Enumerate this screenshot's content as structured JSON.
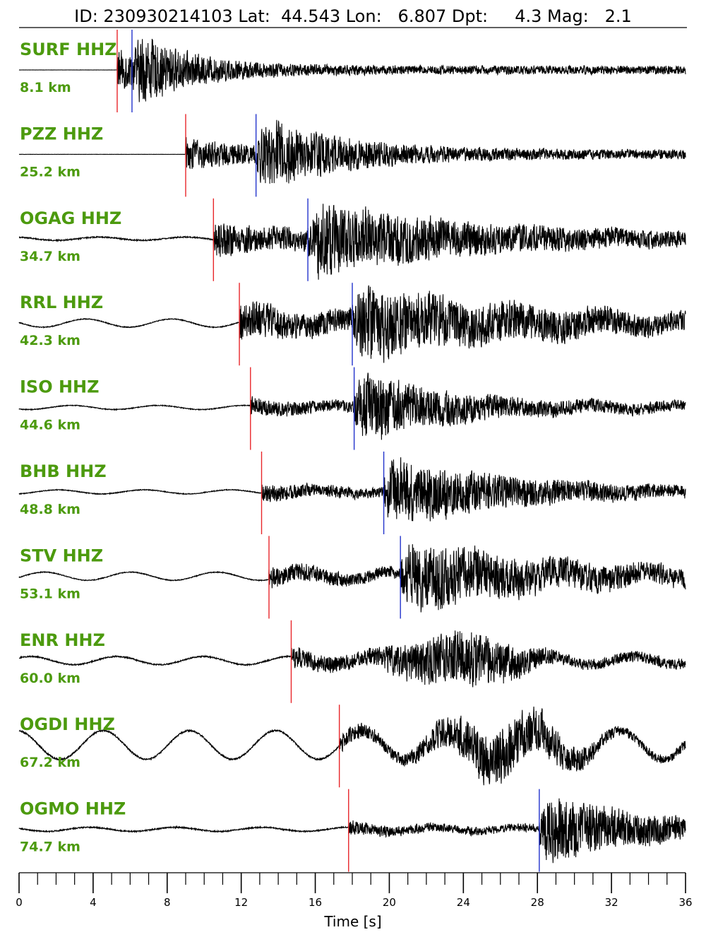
{
  "chart_data": {
    "type": "line",
    "title": "ID: 230930214103 Lat:  44.543 Lon:   6.807 Dpt:     4.3 Mag:   2.1",
    "xlabel": "Time [s]",
    "xlim": [
      0,
      36
    ],
    "x_ticks": [
      0,
      4,
      8,
      12,
      16,
      20,
      24,
      28,
      32,
      36
    ],
    "x_tick_labels": [
      "0",
      "4",
      "8",
      "12",
      "16",
      "20",
      "24",
      "28",
      "32",
      "36"
    ],
    "minor_tick_step": 1,
    "label_color": "#4c9a0e",
    "trace_color": "#000000",
    "p_pick_color": "#e8262a",
    "s_pick_color": "#2233cc",
    "traces": [
      {
        "station": "SURF HHZ",
        "distance": "8.1 km",
        "p_pick": 5.3,
        "s_pick": 6.1,
        "noise": 0.004,
        "p_amp": 0.55,
        "s_amp": 1.0,
        "decay": 3.0,
        "drift": 0.0
      },
      {
        "station": "PZZ HHZ",
        "distance": "25.2 km",
        "p_pick": 9.0,
        "s_pick": 12.8,
        "noise": 0.004,
        "p_amp": 0.45,
        "s_amp": 1.0,
        "decay": 4.5,
        "drift": 0.0
      },
      {
        "station": "OGAG HHZ",
        "distance": "34.7 km",
        "p_pick": 10.5,
        "s_pick": 15.6,
        "noise": 0.03,
        "p_amp": 0.5,
        "s_amp": 0.95,
        "decay": 9.0,
        "drift": 0.04
      },
      {
        "station": "RRL HHZ",
        "distance": "42.3 km",
        "p_pick": 11.9,
        "s_pick": 18.0,
        "noise": 0.02,
        "p_amp": 0.55,
        "s_amp": 0.95,
        "decay": 10.0,
        "drift": 0.1
      },
      {
        "station": "ISO HHZ",
        "distance": "44.6 km",
        "p_pick": 12.5,
        "s_pick": 18.1,
        "noise": 0.02,
        "p_amp": 0.25,
        "s_amp": 0.95,
        "decay": 5.0,
        "drift": 0.05
      },
      {
        "station": "BHB HHZ",
        "distance": "48.8 km",
        "p_pick": 13.1,
        "s_pick": 19.7,
        "noise": 0.02,
        "p_amp": 0.25,
        "s_amp": 0.95,
        "decay": 6.0,
        "drift": 0.05
      },
      {
        "station": "STV HHZ",
        "distance": "53.1 km",
        "p_pick": 13.5,
        "s_pick": 20.6,
        "noise": 0.02,
        "p_amp": 0.3,
        "s_amp": 0.95,
        "decay": 8.0,
        "drift": 0.1
      },
      {
        "station": "ENR HHZ",
        "distance": "60.0 km",
        "p_pick": 14.7,
        "s_pick": null,
        "noise": 0.03,
        "p_amp": 0.3,
        "s_amp": 0.75,
        "decay": 9.0,
        "drift": 0.1
      },
      {
        "station": "OGDI HHZ",
        "distance": "67.2 km",
        "p_pick": 17.3,
        "s_pick": null,
        "noise": 0.04,
        "p_amp": 0.25,
        "s_amp": 0.75,
        "decay": 9.0,
        "drift": 0.35
      },
      {
        "station": "OGMO HHZ",
        "distance": "74.7 km",
        "p_pick": 17.8,
        "s_pick": 28.1,
        "noise": 0.03,
        "p_amp": 0.2,
        "s_amp": 0.95,
        "decay": 5.0,
        "drift": 0.05
      }
    ]
  }
}
